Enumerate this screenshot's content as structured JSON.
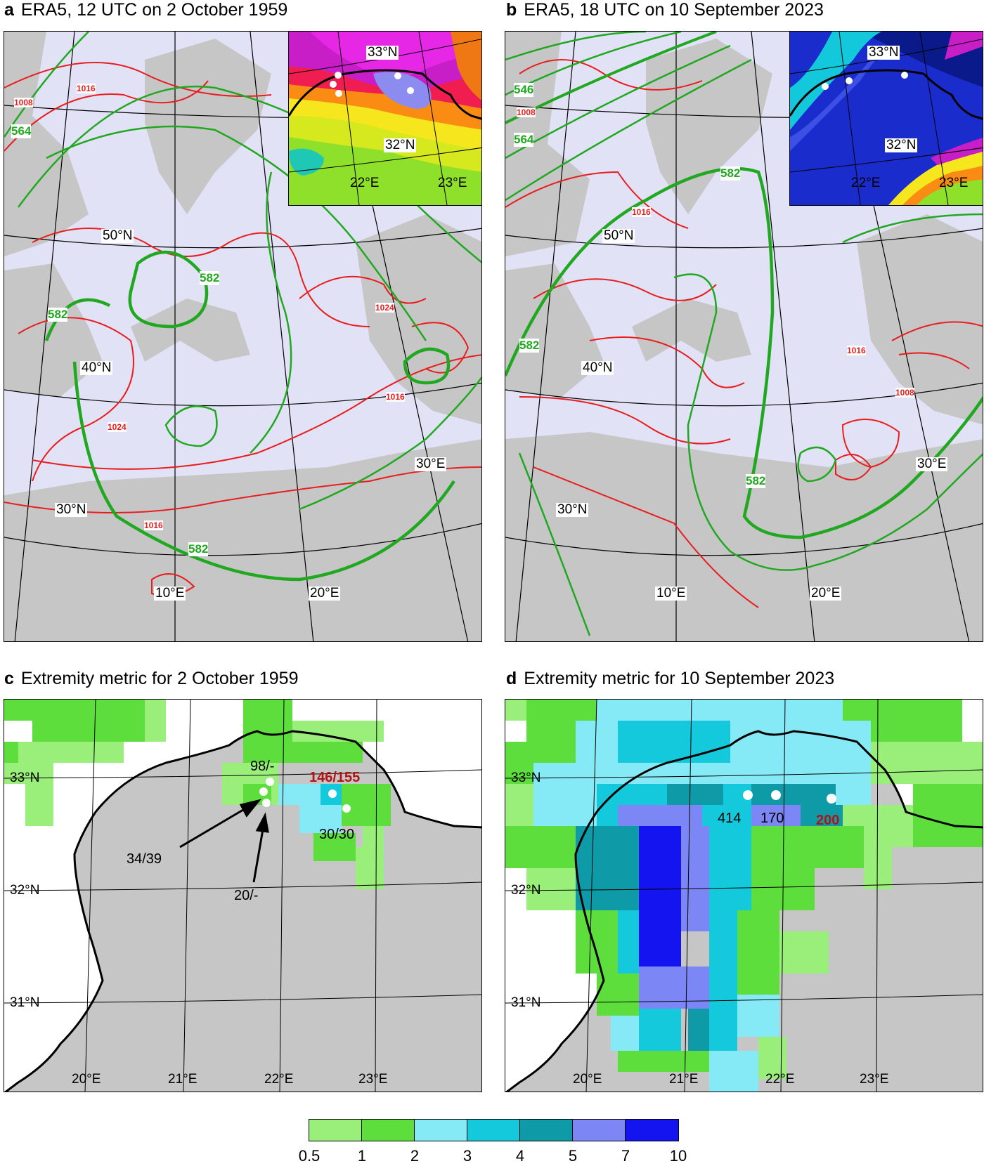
{
  "panels": {
    "a": {
      "letter": "a",
      "title": "ERA5, 12 UTC on 2 October 1959",
      "lat_labels": [
        "50°N",
        "40°N",
        "30°N"
      ],
      "lon_labels": [
        "10°E",
        "20°E",
        "30°E"
      ],
      "contour_labels": {
        "z500": [
          "564",
          "582",
          "582",
          "582"
        ],
        "slp": [
          "1008",
          "1016",
          "1024",
          "1024",
          "1016",
          "1016"
        ]
      },
      "inset": {
        "lat_labels": [
          "33°N",
          "32°N"
        ],
        "lon_labels": [
          "22°E",
          "23°E"
        ]
      }
    },
    "b": {
      "letter": "b",
      "title": "ERA5, 18 UTC on 10 September 2023",
      "lat_labels": [
        "50°N",
        "40°N",
        "30°N"
      ],
      "lon_labels": [
        "10°E",
        "20°E",
        "30°E"
      ],
      "contour_labels": {
        "z500": [
          "546",
          "564",
          "582",
          "582",
          "582"
        ],
        "slp": [
          "1008",
          "1016",
          "1016",
          "1008"
        ]
      },
      "inset": {
        "lat_labels": [
          "33°N",
          "32°N"
        ],
        "lon_labels": [
          "22°E",
          "23°E"
        ]
      }
    },
    "c": {
      "letter": "c",
      "title": "Extremity metric for 2 October 1959",
      "lat_labels": [
        "33°N",
        "32°N",
        "31°N"
      ],
      "lon_labels": [
        "20°E",
        "21°E",
        "22°E",
        "23°E"
      ],
      "annotations": {
        "a1": "98/-",
        "a2": "146/155",
        "a3": "34/39",
        "a4": "30/30",
        "a5": "20/-"
      }
    },
    "d": {
      "letter": "d",
      "title": "Extremity metric for 10 September 2023",
      "lat_labels": [
        "33°N",
        "32°N",
        "31°N"
      ],
      "lon_labels": [
        "20°E",
        "21°E",
        "22°E",
        "23°E"
      ],
      "annotations": {
        "a1": "414",
        "a2": "170",
        "a3": "200"
      }
    }
  },
  "colorbar": {
    "ticks": [
      "0.5",
      "1",
      "2",
      "3",
      "4",
      "5",
      "7",
      "10"
    ],
    "colors": [
      "#9aee7a",
      "#5ede3c",
      "#86eaf6",
      "#14c9dc",
      "#0f9aa8",
      "#7c86f4",
      "#1414f0"
    ]
  },
  "colors": {
    "slp_contour": "#e81e1e",
    "z500_contour": "#21a821",
    "sea": "#e2e2f6",
    "land": "#c6c6c6"
  }
}
